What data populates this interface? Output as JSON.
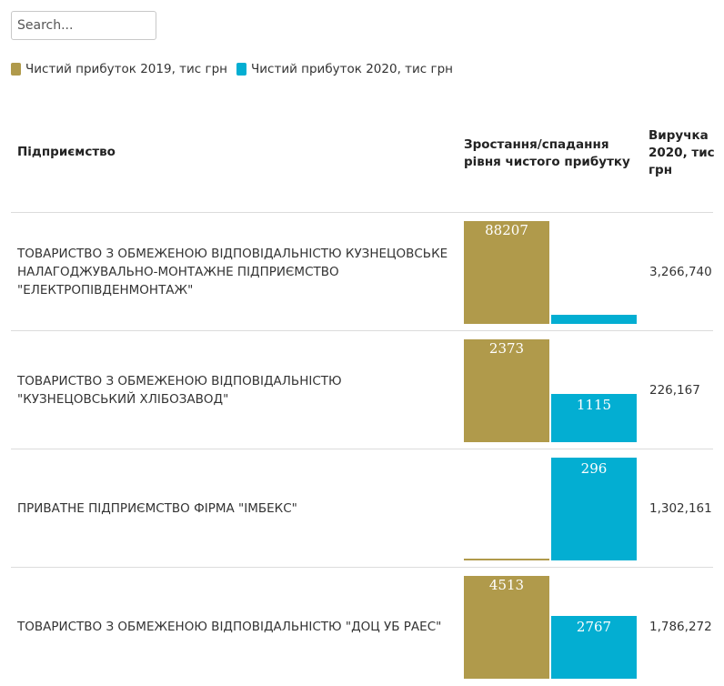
{
  "search": {
    "placeholder": "Search..."
  },
  "legend": [
    {
      "label": "Чистий прибуток 2019, тис грн",
      "color": "#b09a4b"
    },
    {
      "label": "Чистий прибуток 2020, тис грн",
      "color": "#03aed2"
    }
  ],
  "table": {
    "headers": {
      "company": "Підприємство",
      "growth": "Зростання/спадання рівня чистого прибутку",
      "revenue": "Виручка 2020, тис грн"
    }
  },
  "chart_data": {
    "type": "bar",
    "categories": [
      "ТОВАРИСТВО З ОБМЕЖЕНОЮ ВІДПОВІДАЛЬНІСТЮ КУЗНЕЦОВСЬКЕ НАЛАГОДЖУВАЛЬНО-МОНТАЖНЕ ПІДПРИЄМСТВО \"ЕЛЕКТРОПІВДЕНМОНТАЖ\"",
      "ТОВАРИСТВО З ОБМЕЖЕНОЮ ВІДПОВІДАЛЬНІСТЮ \"КУЗНЕЦОВСЬКИЙ ХЛІБОЗАВОД\"",
      "ПРИВАТНЕ ПІДПРИЄМСТВО ФІРМА \"ІМБЕКС\"",
      "ТОВАРИСТВО З ОБМЕЖЕНОЮ ВІДПОВІДАЛЬНІСТЮ \"ДОЦ УБ РАЕС\""
    ],
    "series": [
      {
        "name": "Чистий прибуток 2019, тис грн",
        "values": [
          88207,
          2373,
          4,
          4513
        ],
        "labels": [
          "88207",
          "2373",
          "",
          "4513"
        ]
      },
      {
        "name": "Чистий прибуток 2020, тис грн",
        "values": [
          8000,
          1115,
          296,
          2767
        ],
        "labels": [
          "",
          "1115",
          "296",
          "2767"
        ]
      }
    ],
    "revenue": [
      "3,266,740",
      "226,167",
      "1,302,161",
      "1,786,272"
    ]
  }
}
